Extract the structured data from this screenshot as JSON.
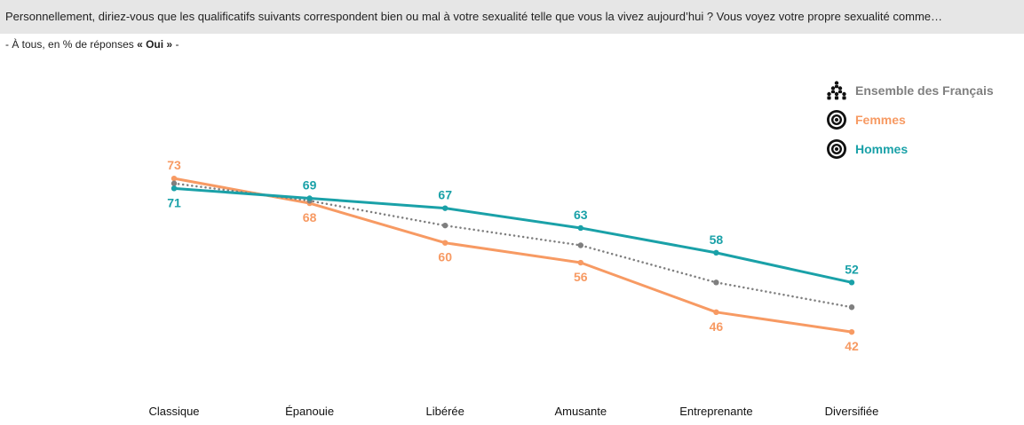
{
  "question": "Personnellement, diriez-vous que les qualificatifs suivants correspondent bien ou mal à votre sexualité telle que vous la vivez aujourd’hui ? Vous voyez votre propre sexualité comme…",
  "subtitle": {
    "prefix": "- À tous, en % de réponses ",
    "emphasis": "« Oui »",
    "suffix": " -"
  },
  "legend": {
    "items": [
      {
        "label": "Ensemble des Français",
        "icon": "people-group-icon",
        "color": "#7f7f7f"
      },
      {
        "label": "Femmes",
        "icon": "target-icon",
        "color": "#f79a63"
      },
      {
        "label": "Hommes",
        "icon": "target-icon",
        "color": "#1aa1a8"
      }
    ]
  },
  "chart_data": {
    "type": "line",
    "title": "",
    "xlabel": "",
    "ylabel": "",
    "categories": [
      "Classique",
      "Épanouie",
      "Libérée",
      "Amusante",
      "Entreprenante",
      "Diversifiée"
    ],
    "ylim": [
      0,
      100
    ],
    "grid": false,
    "legend_position": "top-right",
    "series": [
      {
        "name": "Ensemble des Français",
        "color": "#7f7f7f",
        "style": "dotted",
        "labeled": false,
        "values": [
          72,
          68.5,
          63.5,
          59.5,
          52,
          47
        ]
      },
      {
        "name": "Femmes",
        "color": "#f79a63",
        "style": "solid",
        "labeled": true,
        "values": [
          73,
          68,
          60,
          56,
          46,
          42
        ]
      },
      {
        "name": "Hommes",
        "color": "#1aa1a8",
        "style": "solid",
        "labeled": true,
        "values": [
          71,
          69,
          67,
          63,
          58,
          52
        ]
      }
    ]
  }
}
